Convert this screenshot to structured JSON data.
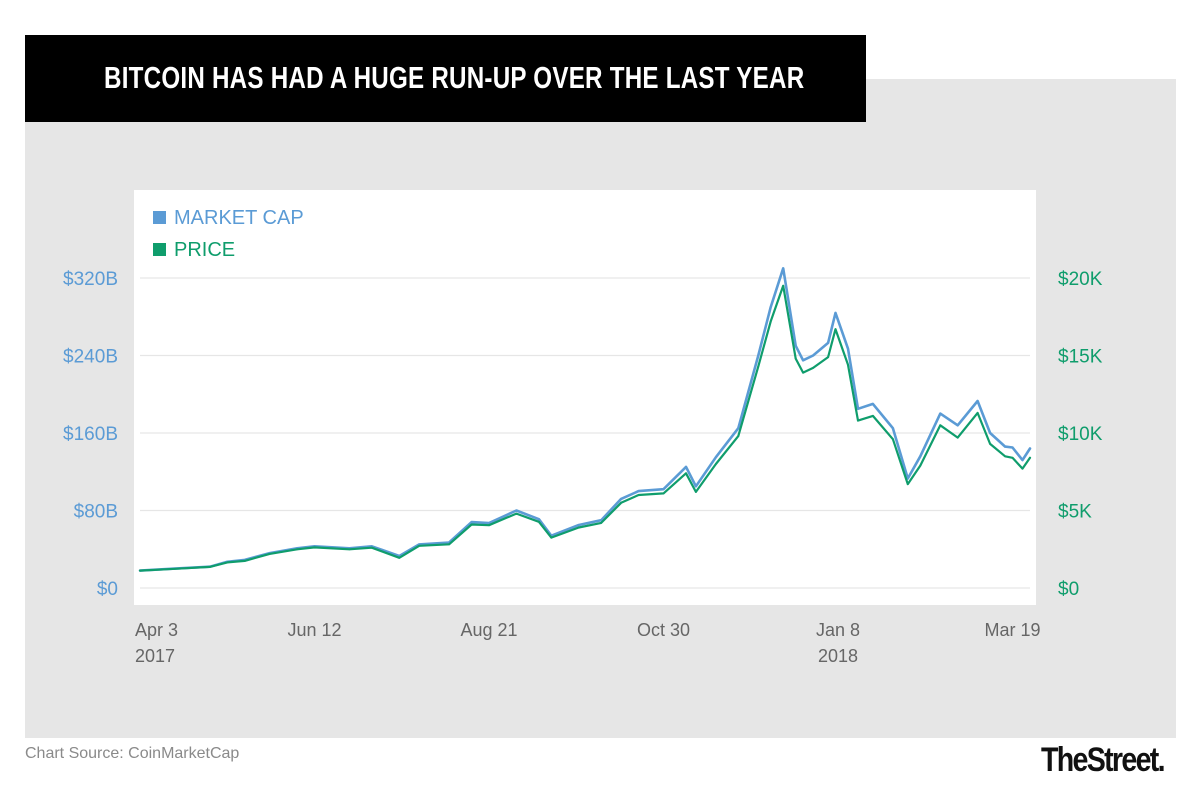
{
  "header": {
    "title": "BITCOIN HAS HAD A HUGE RUN-UP OVER THE LAST YEAR"
  },
  "footer": {
    "source": "Chart Source: CoinMarketCap",
    "brand": "TheStreet."
  },
  "colors": {
    "banner": "#000000",
    "panel": "#e6e6e6",
    "market_cap": "#5b9bd5",
    "price": "#0f9d6c",
    "grid": "#e6e6e6",
    "source_text": "#8a8a8a",
    "x_tick_text": "#666666"
  },
  "chart_data": {
    "type": "line",
    "title": "BITCOIN HAS HAD A HUGE RUN-UP OVER THE LAST YEAR",
    "legend_position": "top-left",
    "grid": true,
    "x_axis": {
      "range": [
        "2017-04-03",
        "2018-03-26"
      ],
      "ticks": [
        {
          "date": "2017-04-03",
          "label": "Apr 3",
          "sublabel": "2017"
        },
        {
          "date": "2017-06-12",
          "label": "Jun 12",
          "sublabel": ""
        },
        {
          "date": "2017-08-21",
          "label": "Aug 21",
          "sublabel": ""
        },
        {
          "date": "2017-10-30",
          "label": "Oct 30",
          "sublabel": ""
        },
        {
          "date": "2018-01-08",
          "label": "Jan 8",
          "sublabel": "2018"
        },
        {
          "date": "2018-03-19",
          "label": "Mar 19",
          "sublabel": ""
        }
      ]
    },
    "y_left": {
      "range": [
        0,
        320
      ],
      "ticks": [
        {
          "value": 0,
          "label": "$0"
        },
        {
          "value": 80,
          "label": "$80B"
        },
        {
          "value": 160,
          "label": "$160B"
        },
        {
          "value": 240,
          "label": "$240B"
        },
        {
          "value": 320,
          "label": "$320B"
        }
      ]
    },
    "y_right": {
      "range": [
        0,
        20000
      ],
      "ticks": [
        {
          "value": 0,
          "label": "$0"
        },
        {
          "value": 5000,
          "label": "$5K"
        },
        {
          "value": 10000,
          "label": "$10K"
        },
        {
          "value": 15000,
          "label": "$15K"
        },
        {
          "value": 20000,
          "label": "$20K"
        }
      ]
    },
    "series": [
      {
        "name": "MARKET CAP",
        "axis": "left",
        "color": "#5b9bd5",
        "points": [
          [
            "2017-04-03",
            18
          ],
          [
            "2017-04-17",
            20
          ],
          [
            "2017-05-01",
            22
          ],
          [
            "2017-05-08",
            27
          ],
          [
            "2017-05-15",
            29
          ],
          [
            "2017-05-25",
            36
          ],
          [
            "2017-06-05",
            41
          ],
          [
            "2017-06-12",
            43
          ],
          [
            "2017-06-26",
            41
          ],
          [
            "2017-07-05",
            43
          ],
          [
            "2017-07-16",
            33
          ],
          [
            "2017-07-24",
            45
          ],
          [
            "2017-08-05",
            47
          ],
          [
            "2017-08-14",
            68
          ],
          [
            "2017-08-21",
            67
          ],
          [
            "2017-09-01",
            80
          ],
          [
            "2017-09-10",
            71
          ],
          [
            "2017-09-15",
            54
          ],
          [
            "2017-09-26",
            65
          ],
          [
            "2017-10-05",
            70
          ],
          [
            "2017-10-13",
            92
          ],
          [
            "2017-10-20",
            100
          ],
          [
            "2017-10-30",
            102
          ],
          [
            "2017-11-08",
            125
          ],
          [
            "2017-11-12",
            105
          ],
          [
            "2017-11-20",
            135
          ],
          [
            "2017-11-29",
            165
          ],
          [
            "2017-12-07",
            240
          ],
          [
            "2017-12-12",
            290
          ],
          [
            "2017-12-17",
            330
          ],
          [
            "2017-12-22",
            250
          ],
          [
            "2017-12-25",
            235
          ],
          [
            "2017-12-29",
            240
          ],
          [
            "2018-01-04",
            253
          ],
          [
            "2018-01-07",
            284
          ],
          [
            "2018-01-12",
            247
          ],
          [
            "2018-01-16",
            185
          ],
          [
            "2018-01-22",
            190
          ],
          [
            "2018-01-30",
            165
          ],
          [
            "2018-02-05",
            113
          ],
          [
            "2018-02-10",
            136
          ],
          [
            "2018-02-18",
            180
          ],
          [
            "2018-02-25",
            168
          ],
          [
            "2018-03-05",
            193
          ],
          [
            "2018-03-10",
            160
          ],
          [
            "2018-03-16",
            146
          ],
          [
            "2018-03-19",
            145
          ],
          [
            "2018-03-23",
            132
          ],
          [
            "2018-03-26",
            144
          ]
        ]
      },
      {
        "name": "PRICE",
        "axis": "right",
        "color": "#0f9d6c",
        "points": [
          [
            "2017-04-03",
            1120
          ],
          [
            "2017-04-17",
            1240
          ],
          [
            "2017-05-01",
            1360
          ],
          [
            "2017-05-08",
            1650
          ],
          [
            "2017-05-15",
            1750
          ],
          [
            "2017-05-25",
            2200
          ],
          [
            "2017-06-05",
            2500
          ],
          [
            "2017-06-12",
            2620
          ],
          [
            "2017-06-26",
            2500
          ],
          [
            "2017-07-05",
            2600
          ],
          [
            "2017-07-16",
            1950
          ],
          [
            "2017-07-24",
            2720
          ],
          [
            "2017-08-05",
            2820
          ],
          [
            "2017-08-14",
            4100
          ],
          [
            "2017-08-21",
            4050
          ],
          [
            "2017-09-01",
            4800
          ],
          [
            "2017-09-10",
            4270
          ],
          [
            "2017-09-15",
            3250
          ],
          [
            "2017-09-26",
            3900
          ],
          [
            "2017-10-05",
            4200
          ],
          [
            "2017-10-13",
            5500
          ],
          [
            "2017-10-20",
            6000
          ],
          [
            "2017-10-30",
            6100
          ],
          [
            "2017-11-08",
            7400
          ],
          [
            "2017-11-12",
            6200
          ],
          [
            "2017-11-20",
            8000
          ],
          [
            "2017-11-29",
            9800
          ],
          [
            "2017-12-07",
            14300
          ],
          [
            "2017-12-12",
            17200
          ],
          [
            "2017-12-17",
            19500
          ],
          [
            "2017-12-22",
            14800
          ],
          [
            "2017-12-25",
            13900
          ],
          [
            "2017-12-29",
            14200
          ],
          [
            "2018-01-04",
            14900
          ],
          [
            "2018-01-07",
            16700
          ],
          [
            "2018-01-12",
            14400
          ],
          [
            "2018-01-16",
            10800
          ],
          [
            "2018-01-22",
            11100
          ],
          [
            "2018-01-30",
            9600
          ],
          [
            "2018-02-05",
            6700
          ],
          [
            "2018-02-10",
            7900
          ],
          [
            "2018-02-18",
            10500
          ],
          [
            "2018-02-25",
            9700
          ],
          [
            "2018-03-05",
            11300
          ],
          [
            "2018-03-10",
            9300
          ],
          [
            "2018-03-16",
            8500
          ],
          [
            "2018-03-19",
            8400
          ],
          [
            "2018-03-23",
            7700
          ],
          [
            "2018-03-26",
            8400
          ]
        ]
      }
    ]
  }
}
